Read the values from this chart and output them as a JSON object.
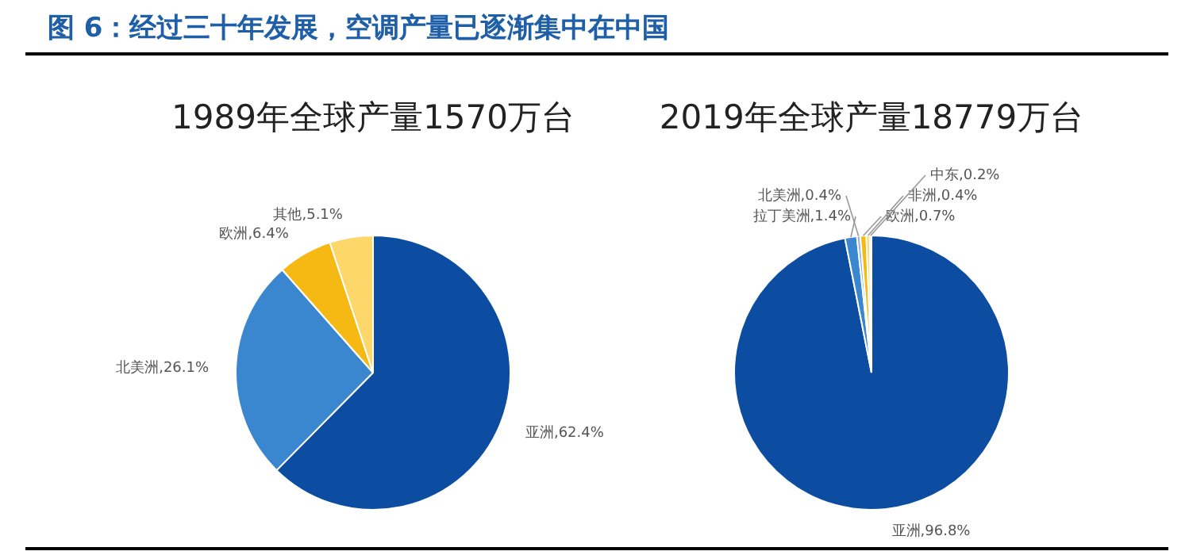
{
  "chart_data": [
    {
      "type": "pie",
      "title": "1989年全球产量1570万台",
      "annotations": [
        "图 6：经过三十年发展，空调产量已逐渐集中在中国"
      ],
      "categories": [
        "亚洲",
        "北美洲",
        "欧洲",
        "其他"
      ],
      "values": [
        62.4,
        26.1,
        6.4,
        5.1
      ],
      "value_labels": [
        "62.4%",
        "26.1%",
        "6.4%",
        "5.1%"
      ],
      "colors": [
        "#0c4da2",
        "#3b87cf",
        "#f6b913",
        "#fed76b"
      ],
      "legend": false
    },
    {
      "type": "pie",
      "title": "2019年全球产量18779万台",
      "categories": [
        "亚洲",
        "拉丁美洲",
        "北美洲",
        "欧洲",
        "非洲",
        "中东"
      ],
      "values": [
        96.8,
        1.4,
        0.4,
        0.7,
        0.4,
        0.2
      ],
      "value_labels": [
        "96.8%",
        "1.4%",
        "0.4%",
        "0.7%",
        "0.4%",
        "0.2%"
      ],
      "colors": [
        "#0c4da2",
        "#3b87cf",
        "#8db4e2",
        "#f6b913",
        "#fed76b",
        "#fbe8b4"
      ],
      "legend": false
    }
  ]
}
